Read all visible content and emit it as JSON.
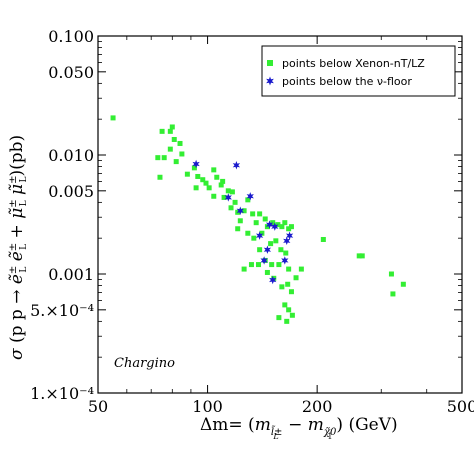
{
  "chart_data": {
    "type": "scatter",
    "title": "",
    "xlabel": "Δm= (m_{l̃±_L} − m_{χ̃0_1}) (GeV)",
    "ylabel": "σ (p p → ẽ±_L ẽ±_L + μ̃±_L μ̃±_L)(pb)",
    "xscale": "log",
    "yscale": "log",
    "xlim": [
      50,
      500
    ],
    "ylim": [
      0.0001,
      0.1
    ],
    "x_tick_labels": [
      "50",
      "100",
      "200",
      "500"
    ],
    "x_ticks": [
      50,
      100,
      200,
      500
    ],
    "y_tick_labels": [
      "1.×10⁻⁴",
      "5.×10⁻⁴",
      "0.001",
      "0.005",
      "0.010",
      "0.050",
      "0.100"
    ],
    "y_ticks": [
      0.0001,
      0.0005,
      0.001,
      0.005,
      0.01,
      0.05,
      0.1
    ],
    "legend_position": "top-right",
    "annotation": "Chargino",
    "series": [
      {
        "name": "points below Xenon-nT/LZ",
        "marker": "square",
        "color": "#33ee33",
        "points": [
          [
            55,
            0.0205
          ],
          [
            75,
            0.0158
          ],
          [
            79,
            0.0158
          ],
          [
            80,
            0.0172
          ],
          [
            73,
            0.0095
          ],
          [
            76,
            0.0095
          ],
          [
            74,
            0.0065
          ],
          [
            81,
            0.0135
          ],
          [
            84,
            0.0125
          ],
          [
            79,
            0.0112
          ],
          [
            82,
            0.0088
          ],
          [
            85,
            0.0102
          ],
          [
            88,
            0.0069
          ],
          [
            92,
            0.0078
          ],
          [
            94,
            0.0066
          ],
          [
            97,
            0.0062
          ],
          [
            99,
            0.0058
          ],
          [
            104,
            0.0075
          ],
          [
            106,
            0.0065
          ],
          [
            109,
            0.0056
          ],
          [
            110,
            0.006
          ],
          [
            93,
            0.0053
          ],
          [
            101,
            0.0053
          ],
          [
            114,
            0.005
          ],
          [
            117,
            0.0049
          ],
          [
            104,
            0.0045
          ],
          [
            111,
            0.0044
          ],
          [
            119,
            0.004
          ],
          [
            126,
            0.0034
          ],
          [
            129,
            0.0042
          ],
          [
            116,
            0.0036
          ],
          [
            121,
            0.0033
          ],
          [
            133,
            0.0032
          ],
          [
            139,
            0.0032
          ],
          [
            136,
            0.0027
          ],
          [
            144,
            0.0029
          ],
          [
            123,
            0.0028
          ],
          [
            121,
            0.0024
          ],
          [
            129,
            0.0022
          ],
          [
            134,
            0.002
          ],
          [
            141,
            0.0022
          ],
          [
            146,
            0.0025
          ],
          [
            151,
            0.0027
          ],
          [
            156,
            0.0026
          ],
          [
            160,
            0.0025
          ],
          [
            163,
            0.0027
          ],
          [
            167,
            0.0024
          ],
          [
            170,
            0.0025
          ],
          [
            149,
            0.0018
          ],
          [
            154,
            0.0019
          ],
          [
            159,
            0.0016
          ],
          [
            139,
            0.0016
          ],
          [
            144,
            0.0013
          ],
          [
            150,
            0.0012
          ],
          [
            157,
            0.0012
          ],
          [
            164,
            0.0015
          ],
          [
            167,
            0.0011
          ],
          [
            126,
            0.0011
          ],
          [
            132,
            0.0012
          ],
          [
            138,
            0.0012
          ],
          [
            146,
            0.00103
          ],
          [
            152,
            0.00092
          ],
          [
            160,
            0.00078
          ],
          [
            166,
            0.00082
          ],
          [
            170,
            0.00071
          ],
          [
            175,
            0.00093
          ],
          [
            181,
            0.0011
          ],
          [
            163,
            0.00055
          ],
          [
            167,
            0.0005
          ],
          [
            171,
            0.00045
          ],
          [
            157,
            0.00043
          ],
          [
            165,
            0.0004
          ],
          [
            208,
            0.00195
          ],
          [
            261,
            0.00142
          ],
          [
            266,
            0.00142
          ],
          [
            320,
            0.001
          ],
          [
            345,
            0.00082
          ],
          [
            323,
            0.00068
          ]
        ]
      },
      {
        "name": "points below the ν-floor",
        "marker": "star",
        "color": "#1a1acc",
        "points": [
          [
            93,
            0.0084
          ],
          [
            120,
            0.0082
          ],
          [
            114,
            0.0044
          ],
          [
            131,
            0.0045
          ],
          [
            123,
            0.0034
          ],
          [
            148,
            0.0026
          ],
          [
            153,
            0.0025
          ],
          [
            139,
            0.0021
          ],
          [
            146,
            0.0016
          ],
          [
            143,
            0.0013
          ],
          [
            165,
            0.0019
          ],
          [
            168,
            0.0021
          ],
          [
            163,
            0.0013
          ],
          [
            151,
            0.00089
          ]
        ]
      }
    ]
  }
}
